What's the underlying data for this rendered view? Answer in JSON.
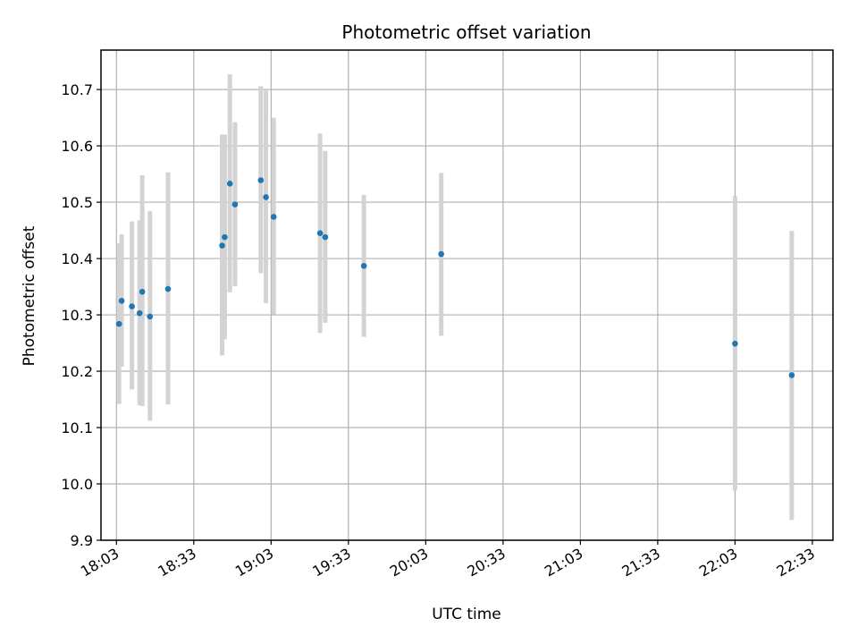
{
  "chart_data": {
    "type": "scatter",
    "title": "Photometric offset variation",
    "xlabel": "UTC time",
    "ylabel": "Photometric offset",
    "grid": true,
    "xlim": [
      "17:57",
      "22:41"
    ],
    "ylim": [
      9.9,
      10.77
    ],
    "x_ticks": [
      "18:03",
      "18:33",
      "19:03",
      "19:33",
      "20:03",
      "20:33",
      "21:03",
      "21:33",
      "22:03",
      "22:33"
    ],
    "y_ticks": [
      "9.9",
      "10.0",
      "10.1",
      "10.2",
      "10.3",
      "10.4",
      "10.5",
      "10.6",
      "10.7"
    ],
    "colors": {
      "points": "#1f77b4",
      "errorbars": "#d3d3d3",
      "grid": "#b0b0b0"
    },
    "points": [
      {
        "x": "18:04",
        "y": 10.284,
        "err_low": 10.142,
        "err_high": 10.427
      },
      {
        "x": "18:05",
        "y": 10.325,
        "err_low": 10.208,
        "err_high": 10.443
      },
      {
        "x": "18:09",
        "y": 10.315,
        "err_low": 10.168,
        "err_high": 10.466
      },
      {
        "x": "18:12",
        "y": 10.303,
        "err_low": 10.14,
        "err_high": 10.468
      },
      {
        "x": "18:13",
        "y": 10.341,
        "err_low": 10.138,
        "err_high": 10.548
      },
      {
        "x": "18:16",
        "y": 10.297,
        "err_low": 10.112,
        "err_high": 10.484
      },
      {
        "x": "18:23",
        "y": 10.346,
        "err_low": 10.141,
        "err_high": 10.553
      },
      {
        "x": "18:44",
        "y": 10.423,
        "err_low": 10.228,
        "err_high": 10.62
      },
      {
        "x": "18:45",
        "y": 10.438,
        "err_low": 10.257,
        "err_high": 10.62
      },
      {
        "x": "18:47",
        "y": 10.533,
        "err_low": 10.34,
        "err_high": 10.727
      },
      {
        "x": "18:49",
        "y": 10.496,
        "err_low": 10.351,
        "err_high": 10.642
      },
      {
        "x": "18:59",
        "y": 10.539,
        "err_low": 10.374,
        "err_high": 10.706
      },
      {
        "x": "19:01",
        "y": 10.509,
        "err_low": 10.321,
        "err_high": 10.698
      },
      {
        "x": "19:04",
        "y": 10.474,
        "err_low": 10.301,
        "err_high": 10.65
      },
      {
        "x": "19:22",
        "y": 10.445,
        "err_low": 10.268,
        "err_high": 10.622
      },
      {
        "x": "19:24",
        "y": 10.438,
        "err_low": 10.286,
        "err_high": 10.591
      },
      {
        "x": "19:39",
        "y": 10.387,
        "err_low": 10.261,
        "err_high": 10.513
      },
      {
        "x": "20:09",
        "y": 10.408,
        "err_low": 10.263,
        "err_high": 10.552
      },
      {
        "x": "22:03",
        "y": 10.249,
        "err_low": 9.988,
        "err_high": 10.511
      },
      {
        "x": "22:25",
        "y": 10.193,
        "err_low": 9.936,
        "err_high": 10.449
      }
    ]
  }
}
